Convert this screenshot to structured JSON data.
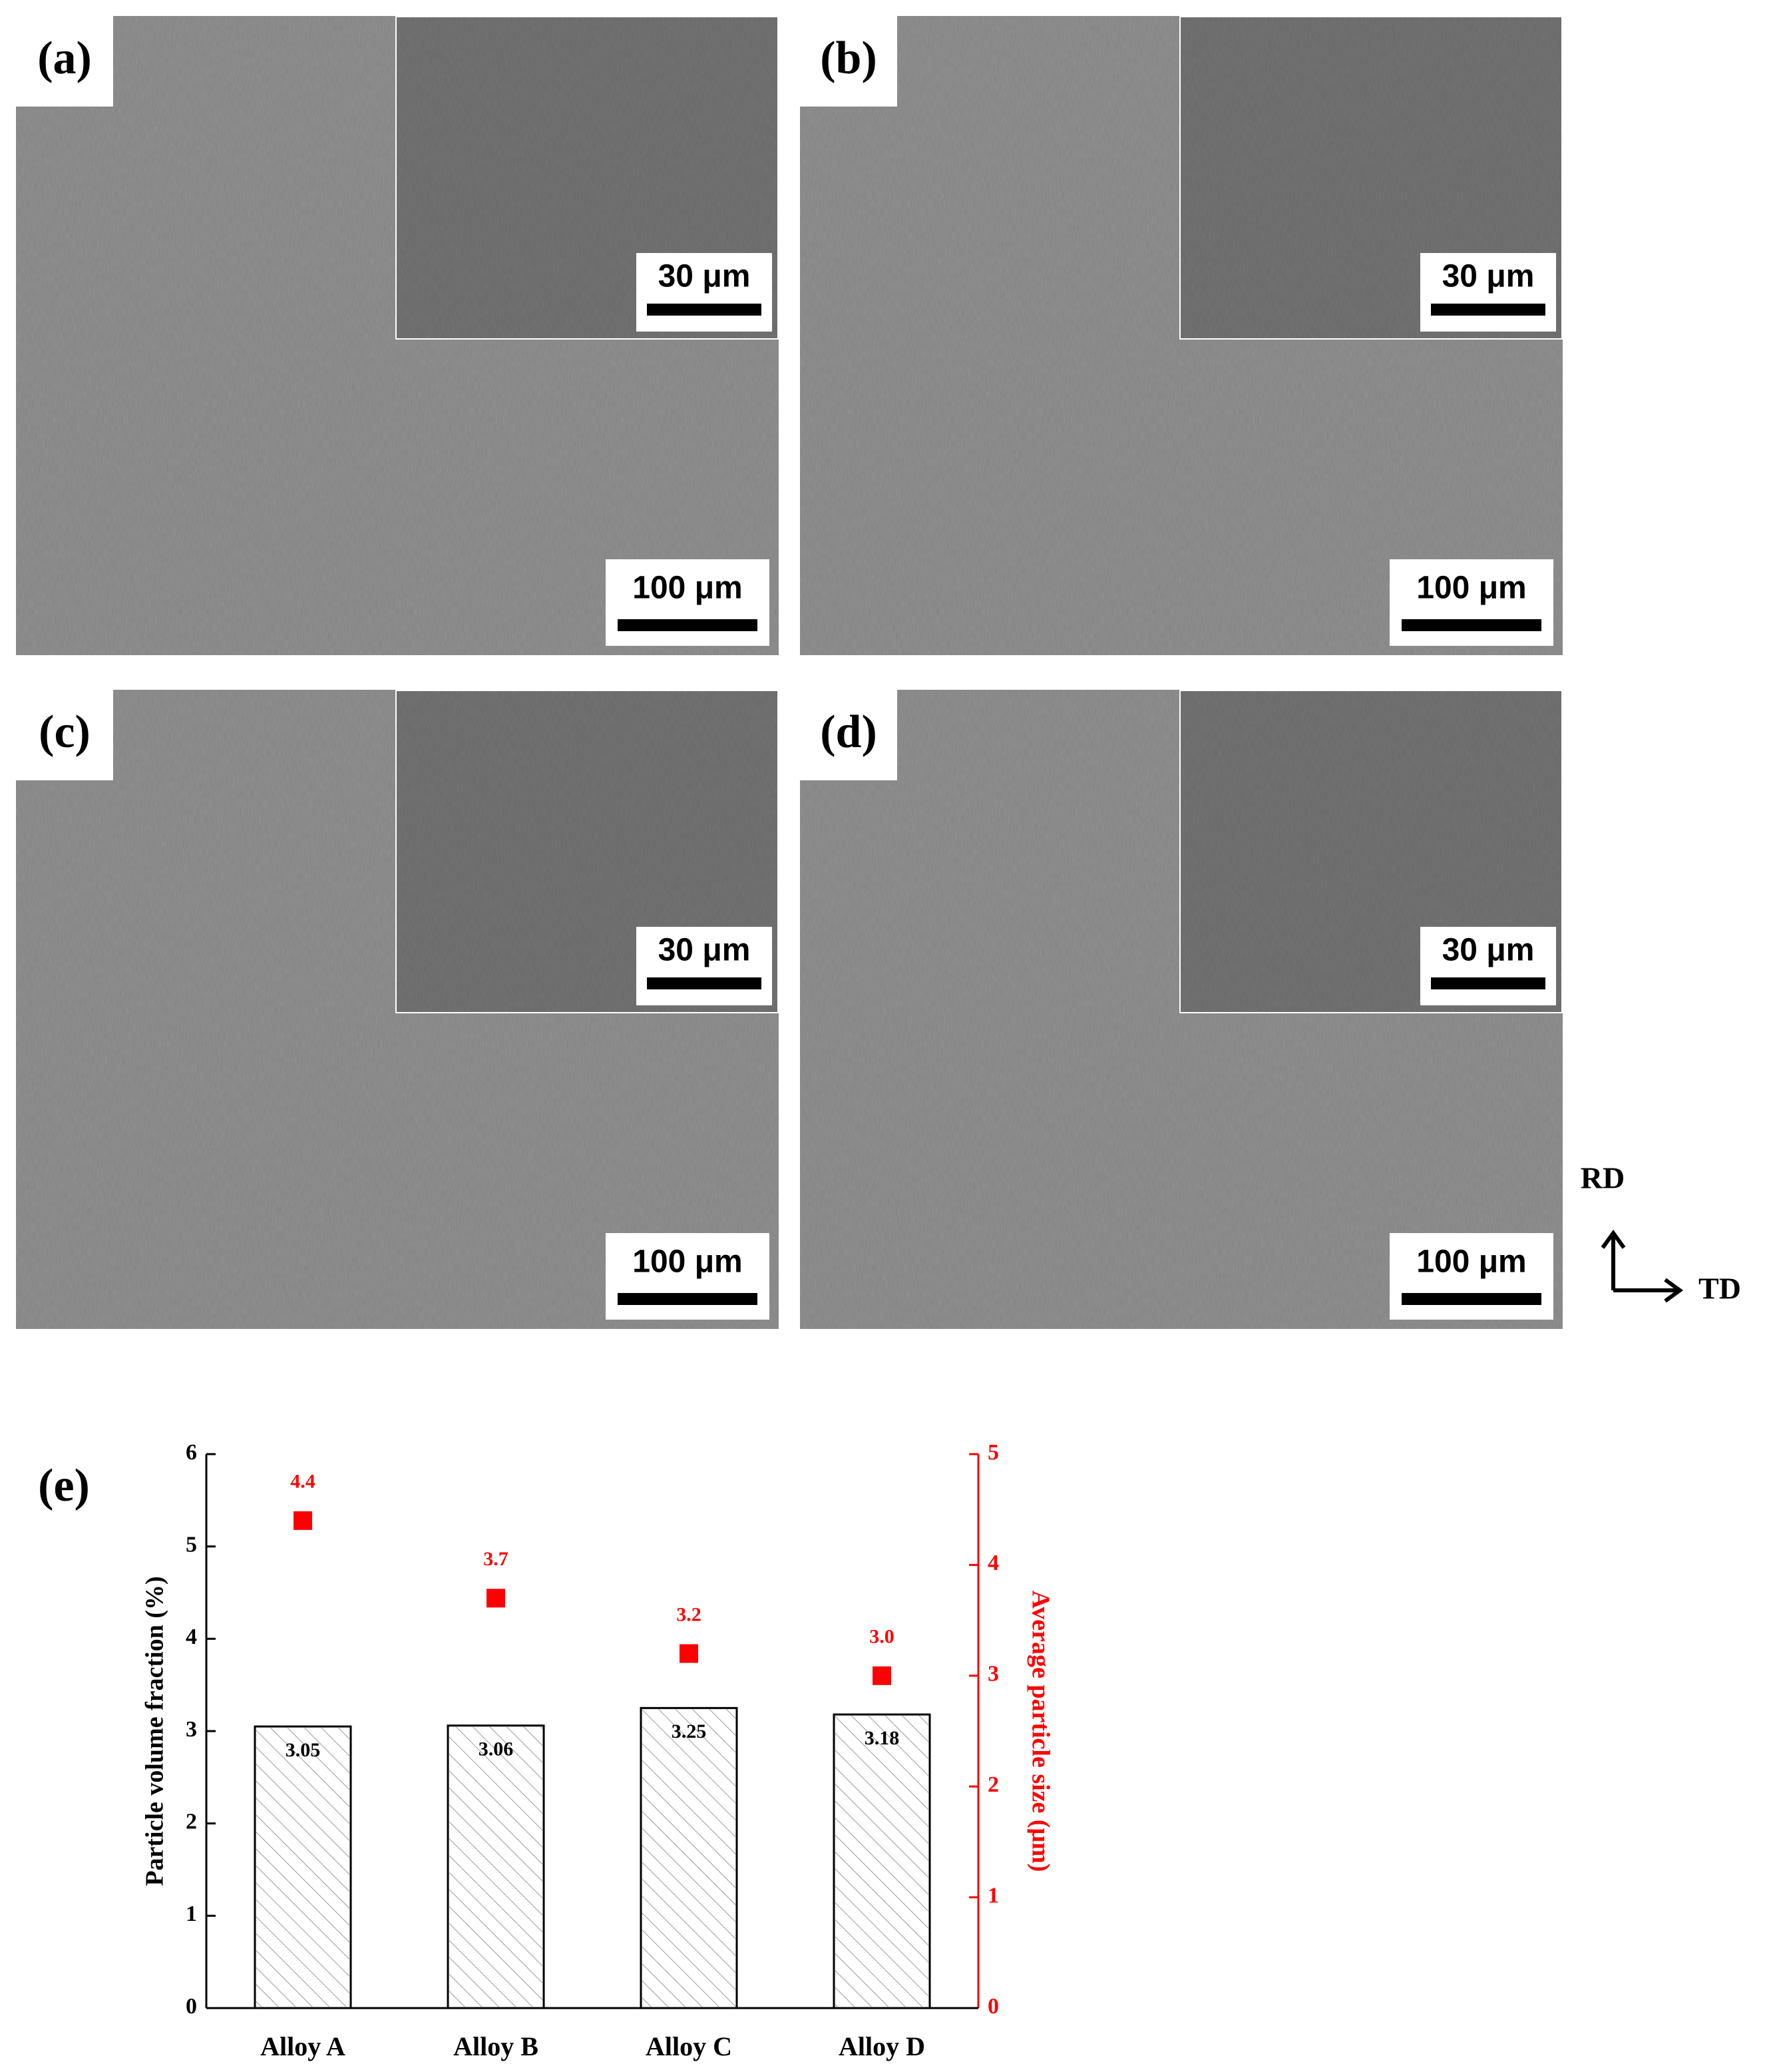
{
  "panels": [
    {
      "label": "(a)",
      "inset_scale_bar": "30 μm",
      "scale_bar": "100 μm"
    },
    {
      "label": "(b)",
      "inset_scale_bar": "30 μm",
      "scale_bar": "100 μm"
    },
    {
      "label": "(c)",
      "inset_scale_bar": "30 μm",
      "scale_bar": "100 μm"
    },
    {
      "label": "(d)",
      "inset_scale_bar": "30 μm",
      "scale_bar": "100 μm"
    }
  ],
  "direction": {
    "rd": "RD",
    "td": "TD"
  },
  "chart_label": "(e)",
  "chart_data": {
    "type": "bar",
    "categories": [
      "Alloy A",
      "Alloy B",
      "Alloy C",
      "Alloy D"
    ],
    "ylabel": "Particle volume fraction (%)",
    "y2label": "Average particle size (μm)",
    "ylim": [
      0,
      6
    ],
    "yticks": [
      0,
      1,
      2,
      3,
      4,
      5,
      6
    ],
    "y2lim": [
      0,
      5
    ],
    "y2ticks": [
      0,
      1,
      2,
      3,
      4,
      5
    ],
    "series": [
      {
        "type": "bar",
        "color": "#ffffff",
        "values": [
          3.05,
          3.06,
          3.25,
          3.18
        ]
      },
      {
        "type": "scatter",
        "axis": "y2",
        "color": "#ff0000",
        "values": [
          4.4,
          3.7,
          3.2,
          3.0
        ],
        "value_labels": [
          "4.4",
          "3.7",
          "3.2",
          "3.0"
        ]
      }
    ]
  }
}
